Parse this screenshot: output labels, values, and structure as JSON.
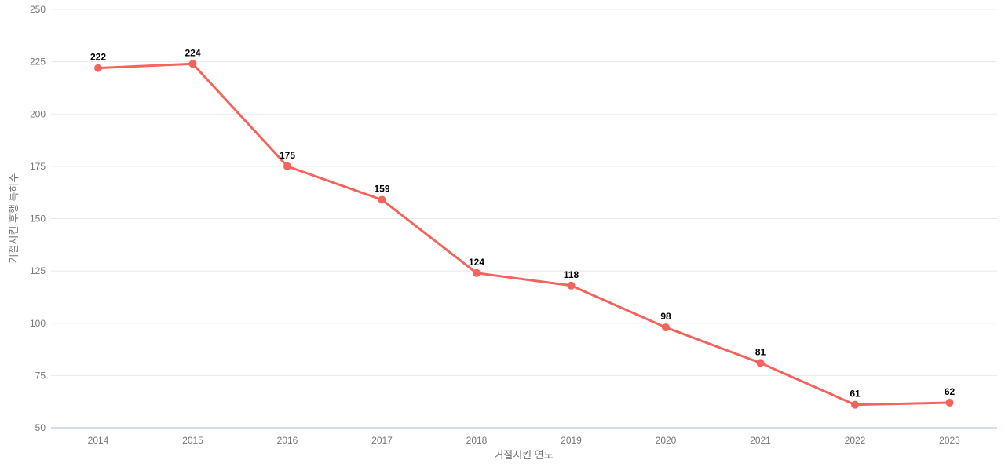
{
  "chart_data": {
    "type": "line",
    "title": "",
    "xlabel": "거절시킨 연도",
    "ylabel": "거절시킨 후행 특허수",
    "categories": [
      2014,
      2015,
      2016,
      2017,
      2018,
      2019,
      2020,
      2021,
      2022,
      2023
    ],
    "values": [
      222,
      224,
      175,
      159,
      124,
      118,
      98,
      81,
      61,
      62
    ],
    "point_labels": [
      "222",
      "224",
      "175",
      "159",
      "124",
      "118",
      "98",
      "81",
      "61",
      "62"
    ],
    "ylim": [
      50,
      250
    ],
    "yticks": [
      50,
      75,
      100,
      125,
      150,
      175,
      200,
      225,
      250
    ],
    "grid": true,
    "legend_position": "none",
    "colors": {
      "line": "#f4645c",
      "marker": "#f4645c",
      "grid": "#e8e8e8",
      "axis_line": "#c8d4e3",
      "tick_text": "#767676",
      "point_label_text": "#000000",
      "background": "#ffffff"
    }
  }
}
